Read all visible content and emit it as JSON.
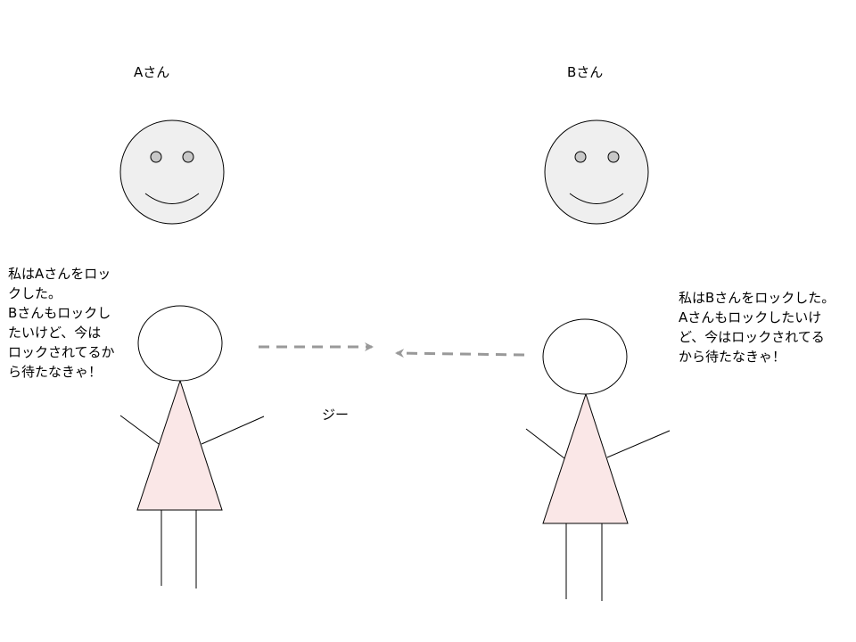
{
  "person_a": {
    "name": "Aさん",
    "speech_lines": [
      "私はAさんをロッ",
      "クした。",
      "Bさんもロックし",
      "たいけど、今は",
      "ロックされてるか",
      "ら待たなきゃ！"
    ]
  },
  "person_b": {
    "name": "Bさん",
    "speech_lines": [
      "私はBさんをロックした。",
      "Aさんもロックしたいけ",
      "ど、今はロックされてる",
      "から待たなきゃ！"
    ]
  },
  "stare_label": "ジー",
  "colors": {
    "face_fill": "#efefef",
    "eye_fill": "#c8c8c8",
    "dress_fill": "#fae7e7",
    "arrow": "#999999",
    "stroke": "#000000"
  }
}
